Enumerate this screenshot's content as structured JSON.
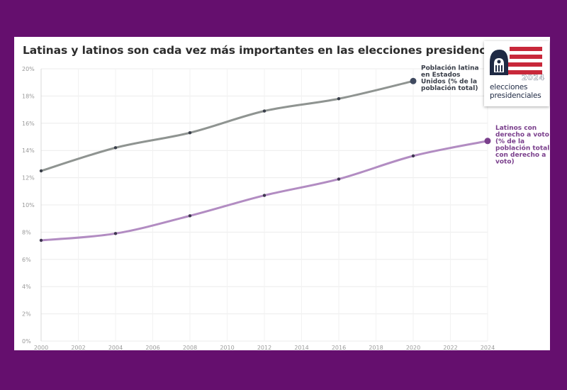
{
  "chart_data": {
    "type": "line",
    "title": "Latinas y latinos son cada vez más importantes en las elecciones presidenciales",
    "xlabel": "",
    "ylabel": "",
    "x_ticks": [
      "2000",
      "2002",
      "2004",
      "2006",
      "2008",
      "2010",
      "2012",
      "2014",
      "2016",
      "2018",
      "2020",
      "2022",
      "2024"
    ],
    "xlim": [
      2000,
      2024
    ],
    "y_ticks": [
      "0%",
      "2%",
      "4%",
      "6%",
      "8%",
      "10%",
      "12%",
      "14%",
      "16%",
      "18%",
      "20%"
    ],
    "ylim": [
      0,
      20
    ],
    "grid": true,
    "series": [
      {
        "name": "Población latina en Estados Unidos (% de la población total)",
        "label_lines": [
          "Población latina",
          "en Estados",
          "Unidos (% de la",
          "población total)"
        ],
        "color": "#8f9491",
        "marker_color": "#3a3f4a",
        "end_marker_color": "#404a60",
        "x": [
          2000,
          2004,
          2008,
          2012,
          2016,
          2020
        ],
        "values": [
          12.5,
          14.2,
          15.3,
          16.9,
          17.8,
          19.1
        ]
      },
      {
        "name": "Latinos con derecho a voto (% de la población total con derecho a voto)",
        "label_lines": [
          "Latinos con",
          "derecho a voto",
          "(% de la",
          "población total",
          "con derecho a",
          "voto)"
        ],
        "color": "#b28cc2",
        "marker_color": "#3e3550",
        "end_marker_color": "#7a3f8c",
        "x": [
          2000,
          2004,
          2008,
          2012,
          2016,
          2020,
          2024
        ],
        "values": [
          7.4,
          7.9,
          9.2,
          10.7,
          11.9,
          13.6,
          14.7
        ]
      }
    ]
  },
  "logo": {
    "line1": "elecciones",
    "line2": "presidenciales",
    "year": "2024",
    "colors": {
      "navy": "#1f2a44",
      "red": "#c8283a"
    }
  }
}
